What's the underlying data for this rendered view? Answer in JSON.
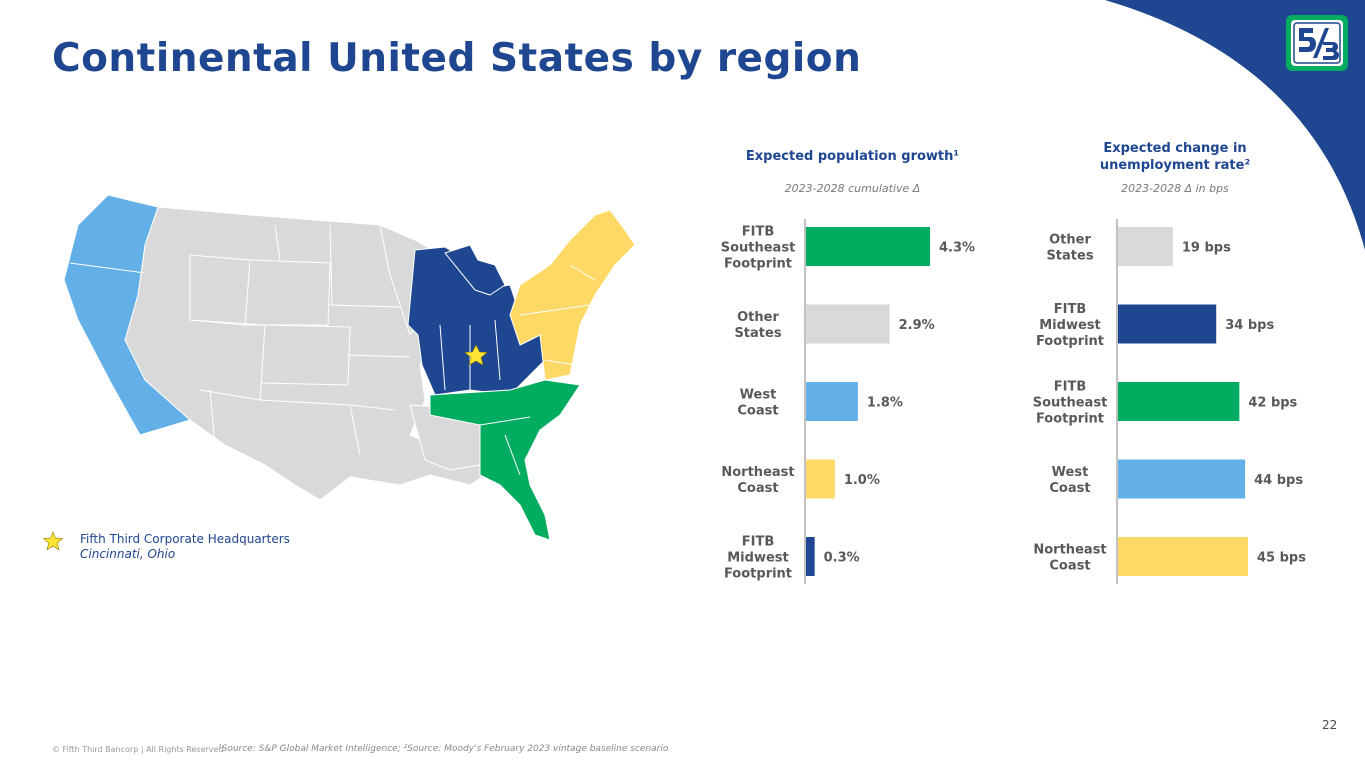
{
  "page": {
    "title": "Continental United States by region",
    "page_number": "22",
    "copyright": "© Fifth Third Bancorp | All Rights Reserved",
    "source": "¹Source: S&P Global Market Intelligence; ²Source: Moody's February 2023 vintage baseline scenario",
    "accent_color": "#1f4690"
  },
  "legend": {
    "hq_label": "Fifth Third Corporate Headquarters",
    "hq_city": "Cincinnati, Ohio",
    "star_icon": "star-icon"
  },
  "chart_data": [
    {
      "type": "bar",
      "orientation": "horizontal",
      "title": "Expected population growth¹",
      "subtitle": "2023-2028 cumulative Δ",
      "categories": [
        "FITB Southeast Footprint",
        "Other States",
        "West Coast",
        "Northeast Coast",
        "FITB Midwest Footprint"
      ],
      "category_lines": [
        [
          "FITB",
          "Southeast",
          "Footprint"
        ],
        [
          "Other",
          "States"
        ],
        [
          "West",
          "Coast"
        ],
        [
          "Northeast",
          "Coast"
        ],
        [
          "FITB",
          "Midwest",
          "Footprint"
        ]
      ],
      "values": [
        4.3,
        2.9,
        1.8,
        1.0,
        0.3
      ],
      "labels": [
        "4.3%",
        "2.9%",
        "1.8%",
        "1.0%",
        "0.3%"
      ],
      "colors": [
        "#00ac5f",
        "#d9d9d9",
        "#63b0e8",
        "#ffd966",
        "#1f4690"
      ],
      "xlim": [
        0,
        5
      ]
    },
    {
      "type": "bar",
      "orientation": "horizontal",
      "title": "Expected change in unemployment rate²",
      "title_lines": [
        "Expected change in",
        "unemployment rate²"
      ],
      "subtitle": "2023-2028 Δ in bps",
      "categories": [
        "Other States",
        "FITB Midwest Footprint",
        "FITB Southeast Footprint",
        "West Coast",
        "Northeast Coast"
      ],
      "category_lines": [
        [
          "Other",
          "States"
        ],
        [
          "FITB",
          "Midwest",
          "Footprint"
        ],
        [
          "FITB",
          "Southeast",
          "Footprint"
        ],
        [
          "West",
          "Coast"
        ],
        [
          "Northeast",
          "Coast"
        ]
      ],
      "values": [
        19,
        34,
        42,
        44,
        45
      ],
      "labels": [
        "19 bps",
        "34 bps",
        "42 bps",
        "44 bps",
        "45 bps"
      ],
      "colors": [
        "#d9d9d9",
        "#1f4690",
        "#00ac5f",
        "#63b0e8",
        "#ffd966"
      ],
      "xlim": [
        0,
        60
      ]
    }
  ],
  "map_regions": [
    {
      "name": "West Coast",
      "color": "#63b0e8"
    },
    {
      "name": "FITB Midwest Footprint",
      "color": "#1f4690"
    },
    {
      "name": "FITB Southeast Footprint",
      "color": "#00ac5f"
    },
    {
      "name": "Northeast Coast",
      "color": "#ffd966"
    },
    {
      "name": "Other States",
      "color": "#d9d9d9"
    }
  ]
}
